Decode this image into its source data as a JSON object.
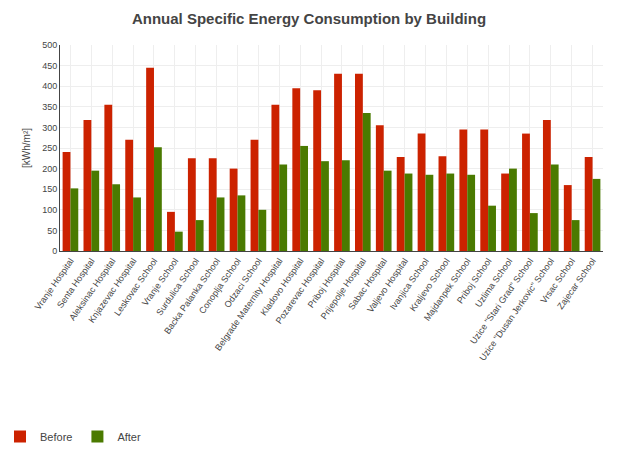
{
  "chart_data": {
    "type": "bar",
    "title": "Annual Specific Energy Consumption by Building",
    "y_label": "[kWh/m²]",
    "categories": [
      "Vranje Hospital",
      "Senta Hospital",
      "Aleksinac Hospital",
      "Knjazevac Hospital",
      "Leskovac School",
      "Vranje School",
      "Surdulica School",
      "Backa Palanka School",
      "Conoplja School",
      "Odzaci School",
      "Belgrade Maternity Hospital",
      "Kladovo Hospital",
      "Pozarevac Hospital",
      "Priboj Hospital",
      "Prijepolje Hospital",
      "Sabac Hospital",
      "Valjevo Hospital",
      "Ivanjica School",
      "Kraljevo School",
      "Majdanpek School",
      "Priboj School",
      "Uzlima School",
      "Uzice \"Stari Grad\" School",
      "Uzice \"Dusan Jerkovic\" School",
      "Vrsac School",
      "Zajecar School"
    ],
    "series": [
      {
        "name": "Before",
        "color": "#cc2200",
        "values": [
          240,
          318,
          355,
          270,
          445,
          95,
          225,
          225,
          200,
          270,
          355,
          395,
          390,
          430,
          430,
          305,
          228,
          285,
          230,
          295,
          295,
          188,
          285,
          318,
          160,
          228
        ]
      },
      {
        "name": "After",
        "color": "#4a7a00",
        "values": [
          152,
          195,
          162,
          130,
          252,
          47,
          75,
          130,
          135,
          100,
          210,
          255,
          218,
          220,
          335,
          195,
          188,
          185,
          188,
          185,
          110,
          200,
          92,
          210,
          75,
          175
        ]
      }
    ],
    "ylim": [
      0,
      500
    ],
    "yticks": [
      0,
      50,
      100,
      150,
      200,
      250,
      300,
      350,
      400,
      450,
      500
    ],
    "grid": true,
    "legend": "lower left"
  }
}
